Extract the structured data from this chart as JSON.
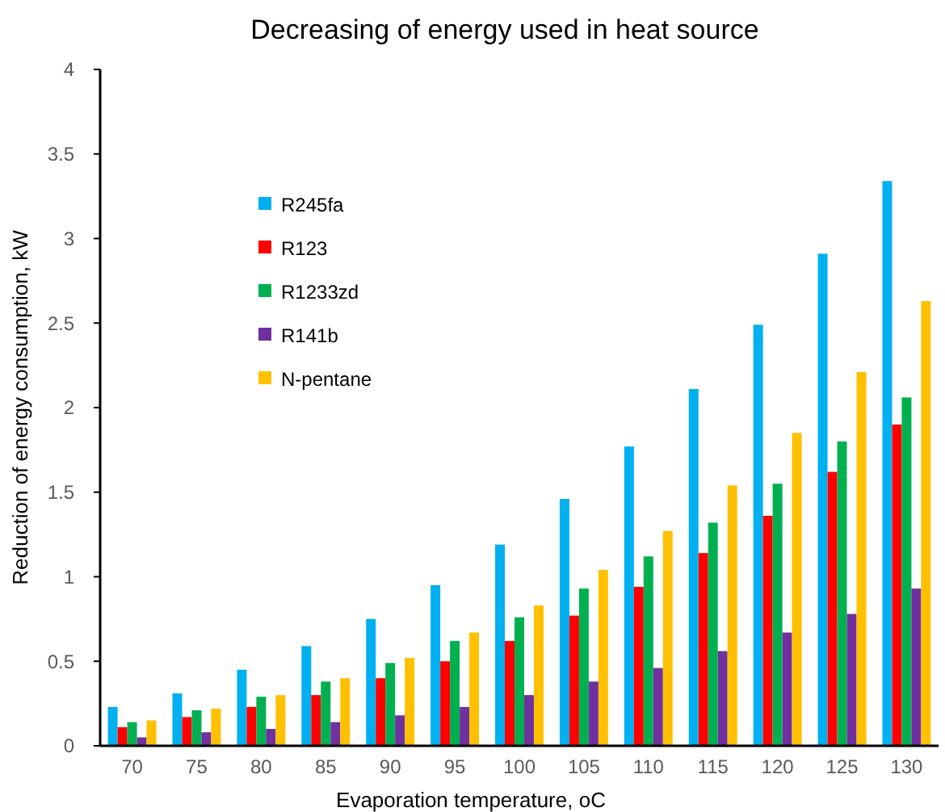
{
  "chart_data": {
    "type": "bar",
    "title": "Decreasing of energy used in heat source",
    "xlabel": "Evaporation temperature, oC",
    "ylabel": "Reduction of energy consumption, kW",
    "categories": [
      "70",
      "75",
      "80",
      "85",
      "90",
      "95",
      "100",
      "105",
      "110",
      "115",
      "120",
      "125",
      "130"
    ],
    "series": [
      {
        "name": "R245fa",
        "color": "#00b0f0",
        "values": [
          0.23,
          0.31,
          0.45,
          0.59,
          0.75,
          0.95,
          1.19,
          1.46,
          1.77,
          2.11,
          2.49,
          2.91,
          3.34
        ]
      },
      {
        "name": "R123",
        "color": "#ff0000",
        "values": [
          0.11,
          0.17,
          0.23,
          0.3,
          0.4,
          0.5,
          0.62,
          0.77,
          0.94,
          1.14,
          1.36,
          1.62,
          1.9
        ]
      },
      {
        "name": "R1233zd",
        "color": "#00b050",
        "values": [
          0.14,
          0.21,
          0.29,
          0.38,
          0.49,
          0.62,
          0.76,
          0.93,
          1.12,
          1.32,
          1.55,
          1.8,
          2.06
        ]
      },
      {
        "name": "R141b",
        "color": "#7030a0",
        "values": [
          0.05,
          0.08,
          0.1,
          0.14,
          0.18,
          0.23,
          0.3,
          0.38,
          0.46,
          0.56,
          0.67,
          0.78,
          0.93
        ]
      },
      {
        "name": "N-pentane",
        "color": "#ffc000",
        "values": [
          0.15,
          0.22,
          0.3,
          0.4,
          0.52,
          0.67,
          0.83,
          1.04,
          1.27,
          1.54,
          1.85,
          2.21,
          2.63
        ]
      }
    ],
    "ylim": [
      0,
      4
    ],
    "yticks": [
      0,
      0.5,
      1,
      1.5,
      2,
      2.5,
      3,
      3.5,
      4
    ],
    "grid": false,
    "legend": "top left"
  }
}
